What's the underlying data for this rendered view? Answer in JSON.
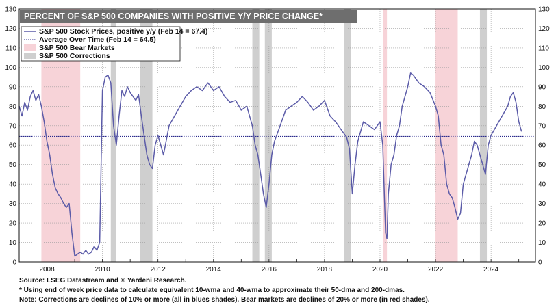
{
  "chart_data": {
    "type": "line",
    "title": "PERCENT OF S&P 500 COMPANIES WITH POSITIVE Y/Y PRICE CHANGE*",
    "ylim": [
      0,
      130
    ],
    "yticks": [
      0,
      10,
      20,
      30,
      40,
      50,
      60,
      70,
      80,
      90,
      100,
      110,
      120,
      130
    ],
    "xlim": [
      2007.0,
      2025.6
    ],
    "xticks": [
      2008,
      2010,
      2012,
      2014,
      2016,
      2018,
      2020,
      2022,
      2024
    ],
    "grid": true,
    "legend_position": "top-left",
    "legend": [
      "S&P 500 Stock Prices, positive y/y (Feb 14 = 67.4)",
      "Average Over Time (Feb 14 = 64.5)",
      "S&P 500 Bear Markets",
      "S&P 500 Corrections"
    ],
    "colors": {
      "series": "#5b5ba8",
      "average": "#2b2b8c",
      "bear": "#f7d3d8",
      "correction": "#cfcfcf",
      "title_bg": "#6e6e6e"
    },
    "average": 64.5,
    "bear_markets": [
      [
        2007.8,
        2009.2
      ],
      [
        2020.1,
        2020.25
      ],
      [
        2022.0,
        2022.8
      ]
    ],
    "corrections": [
      [
        2010.3,
        2010.5
      ],
      [
        2011.35,
        2011.8
      ],
      [
        2015.4,
        2015.65
      ],
      [
        2015.85,
        2016.1
      ],
      [
        2018.7,
        2018.95
      ],
      [
        2023.6,
        2023.85
      ]
    ],
    "series": [
      {
        "name": "S&P 500 Stock Prices, positive y/y",
        "x": [
          2007.0,
          2007.1,
          2007.2,
          2007.3,
          2007.4,
          2007.5,
          2007.6,
          2007.7,
          2007.8,
          2007.9,
          2008.0,
          2008.1,
          2008.2,
          2008.3,
          2008.4,
          2008.5,
          2008.6,
          2008.7,
          2008.8,
          2008.9,
          2009.0,
          2009.1,
          2009.2,
          2009.3,
          2009.4,
          2009.5,
          2009.6,
          2009.7,
          2009.8,
          2009.9,
          2010.0,
          2010.1,
          2010.2,
          2010.3,
          2010.4,
          2010.5,
          2010.6,
          2010.7,
          2010.8,
          2010.9,
          2011.0,
          2011.1,
          2011.2,
          2011.3,
          2011.4,
          2011.5,
          2011.6,
          2011.7,
          2011.8,
          2011.9,
          2012.0,
          2012.2,
          2012.4,
          2012.6,
          2012.8,
          2013.0,
          2013.2,
          2013.4,
          2013.6,
          2013.8,
          2014.0,
          2014.2,
          2014.4,
          2014.6,
          2014.8,
          2015.0,
          2015.2,
          2015.4,
          2015.5,
          2015.6,
          2015.7,
          2015.8,
          2015.9,
          2016.0,
          2016.1,
          2016.2,
          2016.4,
          2016.6,
          2016.8,
          2017.0,
          2017.2,
          2017.4,
          2017.6,
          2017.8,
          2018.0,
          2018.2,
          2018.4,
          2018.6,
          2018.8,
          2018.9,
          2019.0,
          2019.1,
          2019.2,
          2019.4,
          2019.6,
          2019.8,
          2020.0,
          2020.1,
          2020.2,
          2020.25,
          2020.3,
          2020.4,
          2020.5,
          2020.6,
          2020.7,
          2020.8,
          2020.9,
          2021.0,
          2021.1,
          2021.2,
          2021.4,
          2021.6,
          2021.8,
          2022.0,
          2022.1,
          2022.2,
          2022.3,
          2022.4,
          2022.5,
          2022.6,
          2022.7,
          2022.8,
          2022.9,
          2023.0,
          2023.1,
          2023.2,
          2023.3,
          2023.4,
          2023.5,
          2023.6,
          2023.7,
          2023.8,
          2023.9,
          2024.0,
          2024.2,
          2024.4,
          2024.6,
          2024.7,
          2024.8,
          2024.9,
          2025.0,
          2025.1
        ],
        "values": [
          80,
          75,
          82,
          78,
          85,
          88,
          83,
          86,
          80,
          72,
          62,
          55,
          45,
          38,
          35,
          33,
          30,
          28,
          30,
          15,
          3,
          4,
          5,
          4,
          6,
          4,
          5,
          8,
          6,
          10,
          88,
          95,
          96,
          92,
          70,
          60,
          75,
          88,
          85,
          90,
          87,
          85,
          83,
          86,
          75,
          65,
          55,
          50,
          48,
          60,
          65,
          55,
          70,
          75,
          80,
          85,
          88,
          90,
          88,
          92,
          88,
          90,
          85,
          82,
          83,
          78,
          80,
          70,
          60,
          55,
          45,
          35,
          28,
          40,
          55,
          62,
          70,
          78,
          80,
          82,
          85,
          82,
          78,
          80,
          83,
          75,
          72,
          68,
          64,
          58,
          35,
          50,
          62,
          72,
          70,
          68,
          72,
          60,
          15,
          12,
          35,
          50,
          55,
          65,
          70,
          80,
          85,
          90,
          97,
          96,
          92,
          90,
          87,
          80,
          75,
          60,
          55,
          40,
          35,
          33,
          28,
          22,
          25,
          40,
          45,
          50,
          55,
          62,
          60,
          55,
          50,
          45,
          60,
          65,
          70,
          75,
          80,
          85,
          87,
          82,
          72,
          67
        ]
      }
    ]
  },
  "notes": [
    "Source: LSEG Datastream and © Yardeni Research.",
    "* Using end of week price data to calculate equivalent 10-wma and 40-wma to approximate their 50-dma and 200-dmas.",
    "Note: Corrections are declines of 10% or more (all in blues shades). Bear markets are declines of 20% or more (in red shades)."
  ]
}
